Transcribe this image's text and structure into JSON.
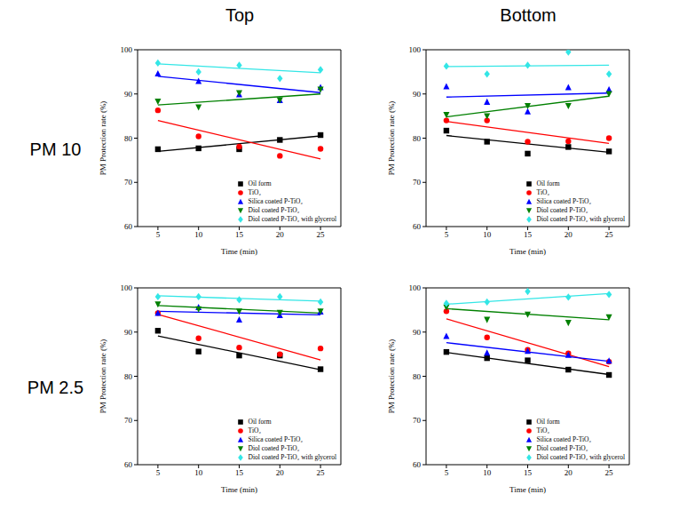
{
  "columns": [
    "Top",
    "Bottom"
  ],
  "rows": [
    "PM 10",
    "PM 2.5"
  ],
  "chart_data": [
    {
      "type": "scatter",
      "x": [
        5,
        10,
        15,
        20,
        25
      ],
      "xlim": [
        2.5,
        27.5
      ],
      "xticks": [
        5,
        10,
        15,
        20,
        25
      ],
      "ylim": [
        60,
        100
      ],
      "yticks": [
        60,
        70,
        80,
        90,
        100
      ],
      "x_label": "Time (min)",
      "y_label": "PM Protection rate (%)",
      "grid": false,
      "legend": "lower right",
      "series": [
        {
          "name": "Oil form",
          "color": "#000000",
          "marker": "square",
          "values": [
            77.5,
            77.7,
            77.5,
            79.6,
            80.7
          ],
          "trend": [
            77.0,
            80.5
          ]
        },
        {
          "name": "TiO₂",
          "color": "#ff0000",
          "marker": "circle",
          "values": [
            86.3,
            80.4,
            78.1,
            76.0,
            77.6
          ],
          "trend": [
            84.0,
            75.3
          ]
        },
        {
          "name": "Silica coated P-TiO₂",
          "color": "#0000ff",
          "marker": "triangle-up",
          "values": [
            94.6,
            92.9,
            89.9,
            88.6,
            91.5
          ],
          "trend": [
            94.0,
            90.3
          ]
        },
        {
          "name": "Diol coated P-TiO₂",
          "color": "#008000",
          "marker": "triangle-down",
          "values": [
            88.3,
            87.0,
            90.2,
            88.6,
            91.0
          ],
          "trend": [
            87.5,
            90.0
          ]
        },
        {
          "name": "Diol coated P-TiO₂ with glycerol",
          "color": "#33e6e6",
          "marker": "diamond",
          "values": [
            97.0,
            95.0,
            96.5,
            93.5,
            95.5
          ],
          "trend": [
            96.8,
            94.8
          ]
        }
      ]
    },
    {
      "type": "scatter",
      "x": [
        5,
        10,
        15,
        20,
        25
      ],
      "xlim": [
        2.5,
        27.5
      ],
      "xticks": [
        5,
        10,
        15,
        20,
        25
      ],
      "ylim": [
        60,
        100
      ],
      "yticks": [
        60,
        70,
        80,
        90,
        100
      ],
      "x_label": "Time (min)",
      "y_label": "PM Protection rate (%)",
      "grid": false,
      "legend": "lower right",
      "series": [
        {
          "name": "Oil form",
          "color": "#000000",
          "marker": "square",
          "values": [
            81.7,
            79.2,
            76.5,
            78.0,
            77.0
          ],
          "trend": [
            80.6,
            76.8
          ]
        },
        {
          "name": "TiO₂",
          "color": "#ff0000",
          "marker": "circle",
          "values": [
            84.0,
            84.0,
            79.2,
            79.3,
            80.0
          ],
          "trend": [
            83.8,
            78.8
          ]
        },
        {
          "name": "Silica coated P-TiO₂",
          "color": "#0000ff",
          "marker": "triangle-up",
          "values": [
            91.7,
            88.2,
            86.0,
            91.5,
            91.0
          ],
          "trend": [
            89.3,
            90.2
          ]
        },
        {
          "name": "Diol coated P-TiO₂",
          "color": "#008000",
          "marker": "triangle-down",
          "values": [
            85.3,
            85.0,
            87.3,
            87.3,
            90.0
          ],
          "trend": [
            84.8,
            89.5
          ]
        },
        {
          "name": "Diol coated P-TiO₂ with glycerol",
          "color": "#33e6e6",
          "marker": "diamond",
          "values": [
            96.3,
            94.5,
            96.5,
            99.5,
            94.5
          ],
          "trend": [
            96.2,
            96.5
          ]
        }
      ]
    },
    {
      "type": "scatter",
      "x": [
        5,
        10,
        15,
        20,
        25
      ],
      "xlim": [
        2.5,
        27.5
      ],
      "xticks": [
        5,
        10,
        15,
        20,
        25
      ],
      "ylim": [
        60,
        100
      ],
      "yticks": [
        60,
        70,
        80,
        90,
        100
      ],
      "x_label": "Time (min)",
      "y_label": "PM Protection rate (%)",
      "grid": false,
      "legend": "lower right",
      "series": [
        {
          "name": "Oil form",
          "color": "#000000",
          "marker": "square",
          "values": [
            90.3,
            85.6,
            84.7,
            84.7,
            81.6
          ],
          "trend": [
            89.1,
            81.5
          ]
        },
        {
          "name": "TiO₂",
          "color": "#ff0000",
          "marker": "circle",
          "values": [
            94.3,
            88.6,
            86.5,
            85.0,
            86.3
          ],
          "trend": [
            94.0,
            83.7
          ]
        },
        {
          "name": "Silica coated P-TiO₂",
          "color": "#0000ff",
          "marker": "triangle-up",
          "values": [
            94.3,
            95.6,
            92.8,
            93.8,
            94.6
          ],
          "trend": [
            94.7,
            93.9
          ]
        },
        {
          "name": "Diol coated P-TiO₂",
          "color": "#008000",
          "marker": "triangle-down",
          "values": [
            96.3,
            95.2,
            94.7,
            94.4,
            94.7
          ],
          "trend": [
            96.0,
            94.3
          ]
        },
        {
          "name": "Diol coated P-TiO₂ with glycerol",
          "color": "#33e6e6",
          "marker": "diamond",
          "values": [
            98.0,
            98.0,
            97.3,
            98.0,
            96.8
          ],
          "trend": [
            98.2,
            97.0
          ]
        }
      ]
    },
    {
      "type": "scatter",
      "x": [
        5,
        10,
        15,
        20,
        25
      ],
      "xlim": [
        2.5,
        27.5
      ],
      "xticks": [
        5,
        10,
        15,
        20,
        25
      ],
      "ylim": [
        60,
        100
      ],
      "yticks": [
        60,
        70,
        80,
        90,
        100
      ],
      "x_label": "Time (min)",
      "y_label": "PM Protection rate (%)",
      "grid": false,
      "legend": "lower right",
      "series": [
        {
          "name": "Oil form",
          "color": "#000000",
          "marker": "square",
          "values": [
            85.5,
            84.1,
            83.6,
            81.5,
            80.3
          ],
          "trend": [
            85.4,
            80.4
          ]
        },
        {
          "name": "TiO₂",
          "color": "#ff0000",
          "marker": "circle",
          "values": [
            94.7,
            88.8,
            86.0,
            85.2,
            83.3
          ],
          "trend": [
            93.0,
            82.2
          ]
        },
        {
          "name": "Silica coated P-TiO₂",
          "color": "#0000ff",
          "marker": "triangle-up",
          "values": [
            89.1,
            85.3,
            85.7,
            84.8,
            83.5
          ],
          "trend": [
            87.6,
            83.4
          ]
        },
        {
          "name": "Diol coated P-TiO₂",
          "color": "#008000",
          "marker": "triangle-down",
          "values": [
            95.6,
            92.8,
            94.0,
            92.1,
            93.4
          ],
          "trend": [
            95.3,
            92.8
          ]
        },
        {
          "name": "Diol coated P-TiO₂ with glycerol",
          "color": "#33e6e6",
          "marker": "diamond",
          "values": [
            96.5,
            96.8,
            99.2,
            97.9,
            98.5
          ],
          "trend": [
            96.3,
            98.7
          ]
        }
      ]
    }
  ]
}
